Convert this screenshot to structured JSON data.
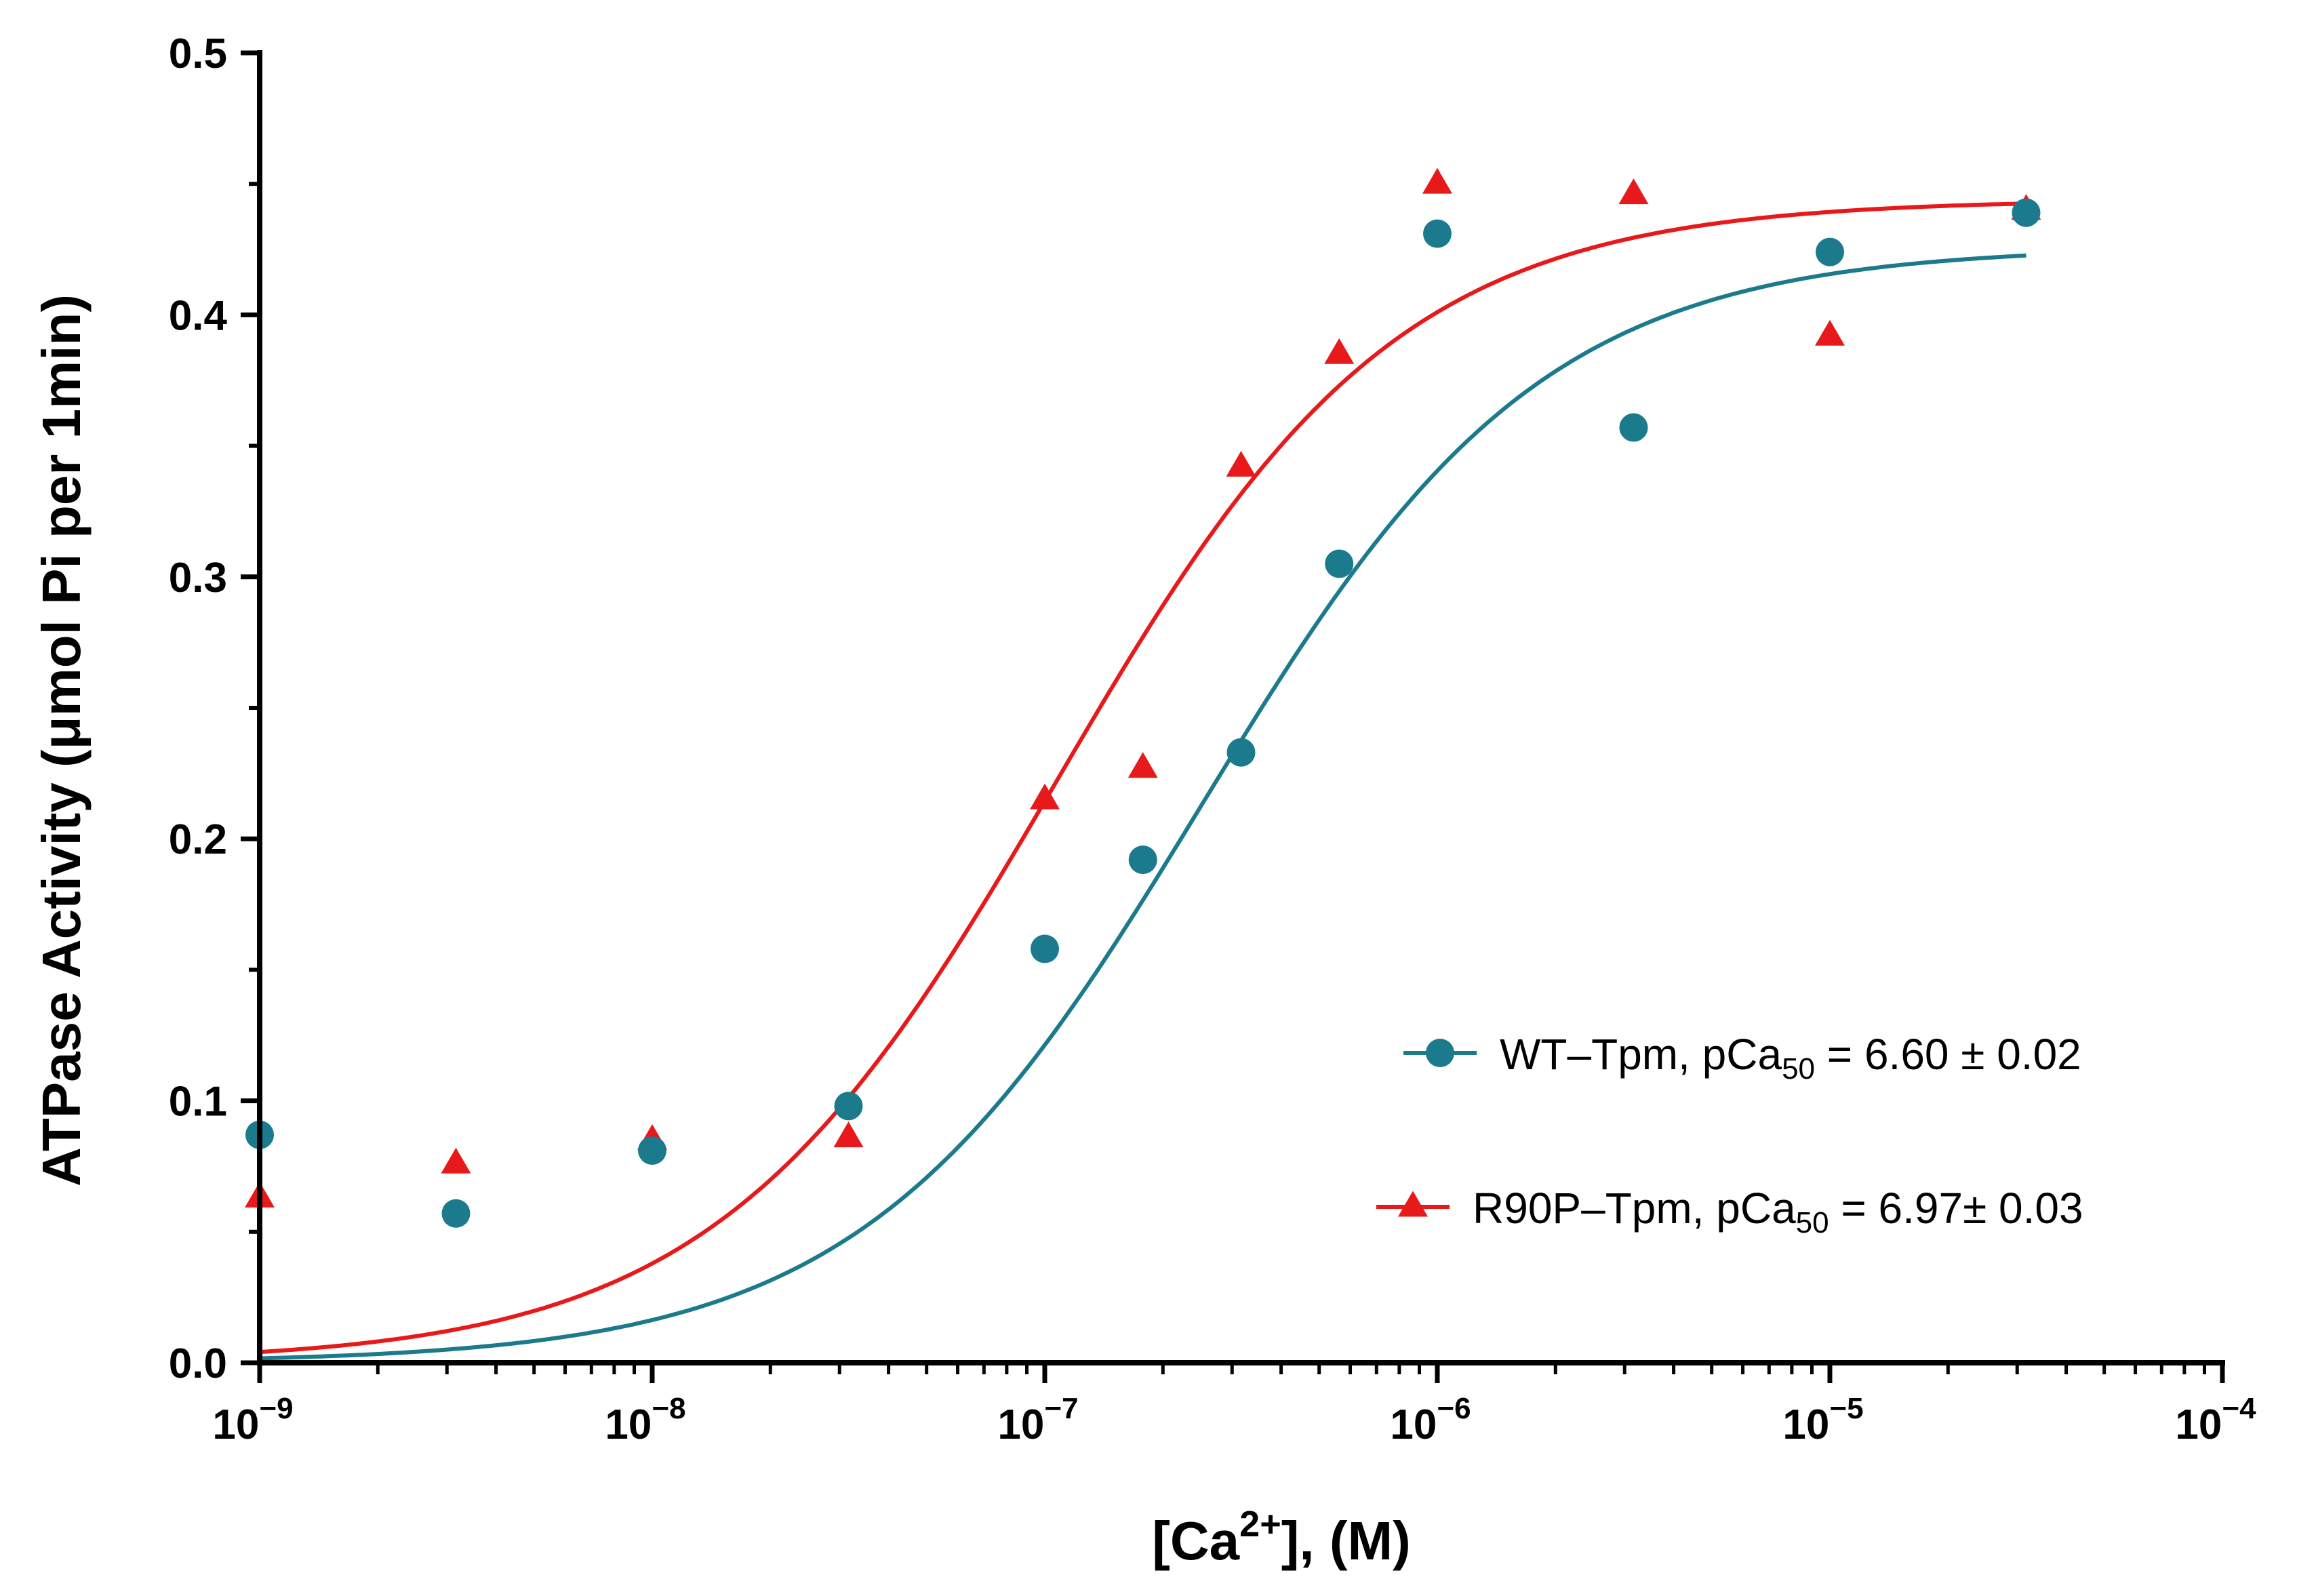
{
  "chart_data": {
    "type": "scatter",
    "title": "",
    "xlabel": {
      "prefix": "[Ca",
      "sup": "2+",
      "suffix": "], (M)"
    },
    "ylabel": "ATPase Activity (μmol Pi per 1min)",
    "xscale": "log",
    "xlim_exp": [
      -9,
      -4
    ],
    "ylim": [
      0.0,
      0.5
    ],
    "x_ticks": [
      {
        "base": "10",
        "exp": "−9"
      },
      {
        "base": "10",
        "exp": "−8"
      },
      {
        "base": "10",
        "exp": "−7"
      },
      {
        "base": "10",
        "exp": "−6"
      },
      {
        "base": "10",
        "exp": "−5"
      },
      {
        "base": "10",
        "exp": "−4"
      }
    ],
    "y_ticks": [
      "0.0",
      "0.1",
      "0.2",
      "0.3",
      "0.4",
      "0.5"
    ],
    "legend_position": "right",
    "series": [
      {
        "name": "WT–Tpm",
        "label_prefix": "WT–Tpm, pCa",
        "label_sub": "50",
        "label_suffix": " = 6.60 ± 0.02",
        "marker": "circle",
        "color": "#1b7a8c",
        "pCa50": 6.6,
        "fit": {
          "bottom": 0.0,
          "top": 0.426,
          "hill": 1.0
        },
        "points": [
          {
            "log_x": -9.0,
            "y": 0.087
          },
          {
            "log_x": -8.5,
            "y": 0.057
          },
          {
            "log_x": -8.0,
            "y": 0.081
          },
          {
            "log_x": -7.5,
            "y": 0.098
          },
          {
            "log_x": -7.0,
            "y": 0.158
          },
          {
            "log_x": -6.75,
            "y": 0.192
          },
          {
            "log_x": -6.5,
            "y": 0.233
          },
          {
            "log_x": -6.25,
            "y": 0.305
          },
          {
            "log_x": -6.0,
            "y": 0.431
          },
          {
            "log_x": -5.5,
            "y": 0.357
          },
          {
            "log_x": -5.0,
            "y": 0.424
          },
          {
            "log_x": -4.5,
            "y": 0.439
          }
        ]
      },
      {
        "name": "R90P–Tpm",
        "label_prefix": "R90P–Tpm, pCa",
        "label_sub": "50",
        "label_suffix": " = 6.97± 0.03",
        "marker": "triangle",
        "color": "#e8191b",
        "pCa50": 6.97,
        "fit": {
          "bottom": 0.0,
          "top": 0.444,
          "hill": 1.0
        },
        "points": [
          {
            "log_x": -9.0,
            "y": 0.063
          },
          {
            "log_x": -8.5,
            "y": 0.076
          },
          {
            "log_x": -8.0,
            "y": 0.085
          },
          {
            "log_x": -7.5,
            "y": 0.086
          },
          {
            "log_x": -7.0,
            "y": 0.215
          },
          {
            "log_x": -6.75,
            "y": 0.227
          },
          {
            "log_x": -6.5,
            "y": 0.342
          },
          {
            "log_x": -6.25,
            "y": 0.385
          },
          {
            "log_x": -6.0,
            "y": 0.45
          },
          {
            "log_x": -5.5,
            "y": 0.446
          },
          {
            "log_x": -5.0,
            "y": 0.392
          },
          {
            "log_x": -4.5,
            "y": 0.44
          }
        ]
      }
    ]
  }
}
